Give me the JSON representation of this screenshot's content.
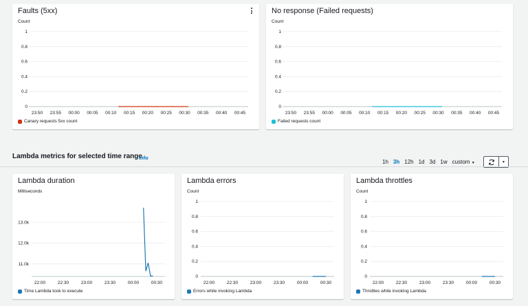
{
  "panels": {
    "faults": {
      "title": "Faults (5xx)",
      "unit": "Count",
      "legend": "Canary requests 5xx count",
      "legend_color": "#d13212",
      "menu_icon": "kebab-menu-icon"
    },
    "no_response": {
      "title": "No response (Failed requests)",
      "unit": "Count",
      "legend": "Failed requests count",
      "legend_color": "#1dbfd9"
    },
    "lambda_duration": {
      "title": "Lambda duration",
      "unit": "Milliseconds",
      "legend": "Time Lambda took to execute",
      "legend_color": "#1f77b4"
    },
    "lambda_errors": {
      "title": "Lambda errors",
      "unit": "Count",
      "legend": "Errors while invoking Lambda",
      "legend_color": "#1f77b4"
    },
    "lambda_throttles": {
      "title": "Lambda throttles",
      "unit": "Count",
      "legend": "Throttles while invoking Lambda",
      "legend_color": "#1f77b4"
    }
  },
  "section": {
    "title": "Lambda metrics for selected time range",
    "info": "Info"
  },
  "time_range": {
    "options": [
      "1h",
      "3h",
      "12h",
      "1d",
      "3d",
      "1w",
      "custom"
    ],
    "selected": "3h",
    "refresh_icon": "refresh-icon",
    "dropdown_icon": "caret-down-icon"
  },
  "chart_data": [
    {
      "type": "line",
      "title": "Faults (5xx)",
      "ylabel": "Count",
      "y_ticks": [
        "1",
        "0.8",
        "0.6",
        "0.4",
        "0.2",
        "0"
      ],
      "ylim": [
        0,
        1
      ],
      "x_ticks": [
        "23:50",
        "23:55",
        "00:00",
        "00:05",
        "00:10",
        "00:15",
        "00:20",
        "00:25",
        "00:30",
        "00:35",
        "00:40",
        "00:45"
      ],
      "series": [
        {
          "name": "Canary requests 5xx count",
          "color": "#d13212",
          "x": [
            "00:12",
            "00:15",
            "00:20",
            "00:25",
            "00:30",
            "00:31"
          ],
          "y": [
            0,
            0,
            0,
            0,
            0,
            0
          ]
        }
      ]
    },
    {
      "type": "line",
      "title": "No response (Failed requests)",
      "ylabel": "Count",
      "y_ticks": [
        "1",
        "0.8",
        "0.6",
        "0.4",
        "0.2",
        "0"
      ],
      "ylim": [
        0,
        1
      ],
      "x_ticks": [
        "23:50",
        "23:55",
        "00:00",
        "00:05",
        "00:10",
        "00:15",
        "00:20",
        "00:25",
        "00:30",
        "00:35",
        "00:40",
        "00:45"
      ],
      "series": [
        {
          "name": "Failed requests count",
          "color": "#1dbfd9",
          "x": [
            "00:12",
            "00:15",
            "00:20",
            "00:25",
            "00:30",
            "00:31"
          ],
          "y": [
            0,
            0,
            0,
            0,
            0,
            0
          ]
        }
      ]
    },
    {
      "type": "line",
      "title": "Lambda duration",
      "ylabel": "Milliseconds",
      "y_ticks": [
        "13.0k",
        "12.0k",
        "11.0k"
      ],
      "ylim": [
        10400,
        14000
      ],
      "x_ticks": [
        "22:00",
        "22:30",
        "23:00",
        "23:30",
        "00:00",
        "00:30"
      ],
      "series": [
        {
          "name": "Time Lambda took to execute",
          "color": "#1f77b4",
          "x": [
            "00:13",
            "00:16",
            "00:19",
            "00:22",
            "00:25"
          ],
          "y": [
            13700,
            10650,
            11050,
            10420,
            10420
          ]
        }
      ]
    },
    {
      "type": "line",
      "title": "Lambda errors",
      "ylabel": "Count",
      "y_ticks": [
        "1",
        "0.8",
        "0.6",
        "0.4",
        "0.2",
        "0"
      ],
      "ylim": [
        0,
        1
      ],
      "x_ticks": [
        "22:00",
        "22:30",
        "23:00",
        "23:30",
        "00:00",
        "00:30"
      ],
      "series": [
        {
          "name": "Errors while invoking Lambda",
          "color": "#1f77b4",
          "x": [
            "00:13",
            "00:30"
          ],
          "y": [
            0,
            0
          ]
        }
      ]
    },
    {
      "type": "line",
      "title": "Lambda throttles",
      "ylabel": "Count",
      "y_ticks": [
        "1",
        "0.8",
        "0.6",
        "0.4",
        "0.2",
        "0"
      ],
      "ylim": [
        0,
        1
      ],
      "x_ticks": [
        "22:00",
        "22:30",
        "23:00",
        "23:30",
        "00:00",
        "00:30"
      ],
      "series": [
        {
          "name": "Throttles while invoking Lambda",
          "color": "#1f77b4",
          "x": [
            "00:13",
            "00:30"
          ],
          "y": [
            0,
            0
          ]
        }
      ]
    }
  ]
}
